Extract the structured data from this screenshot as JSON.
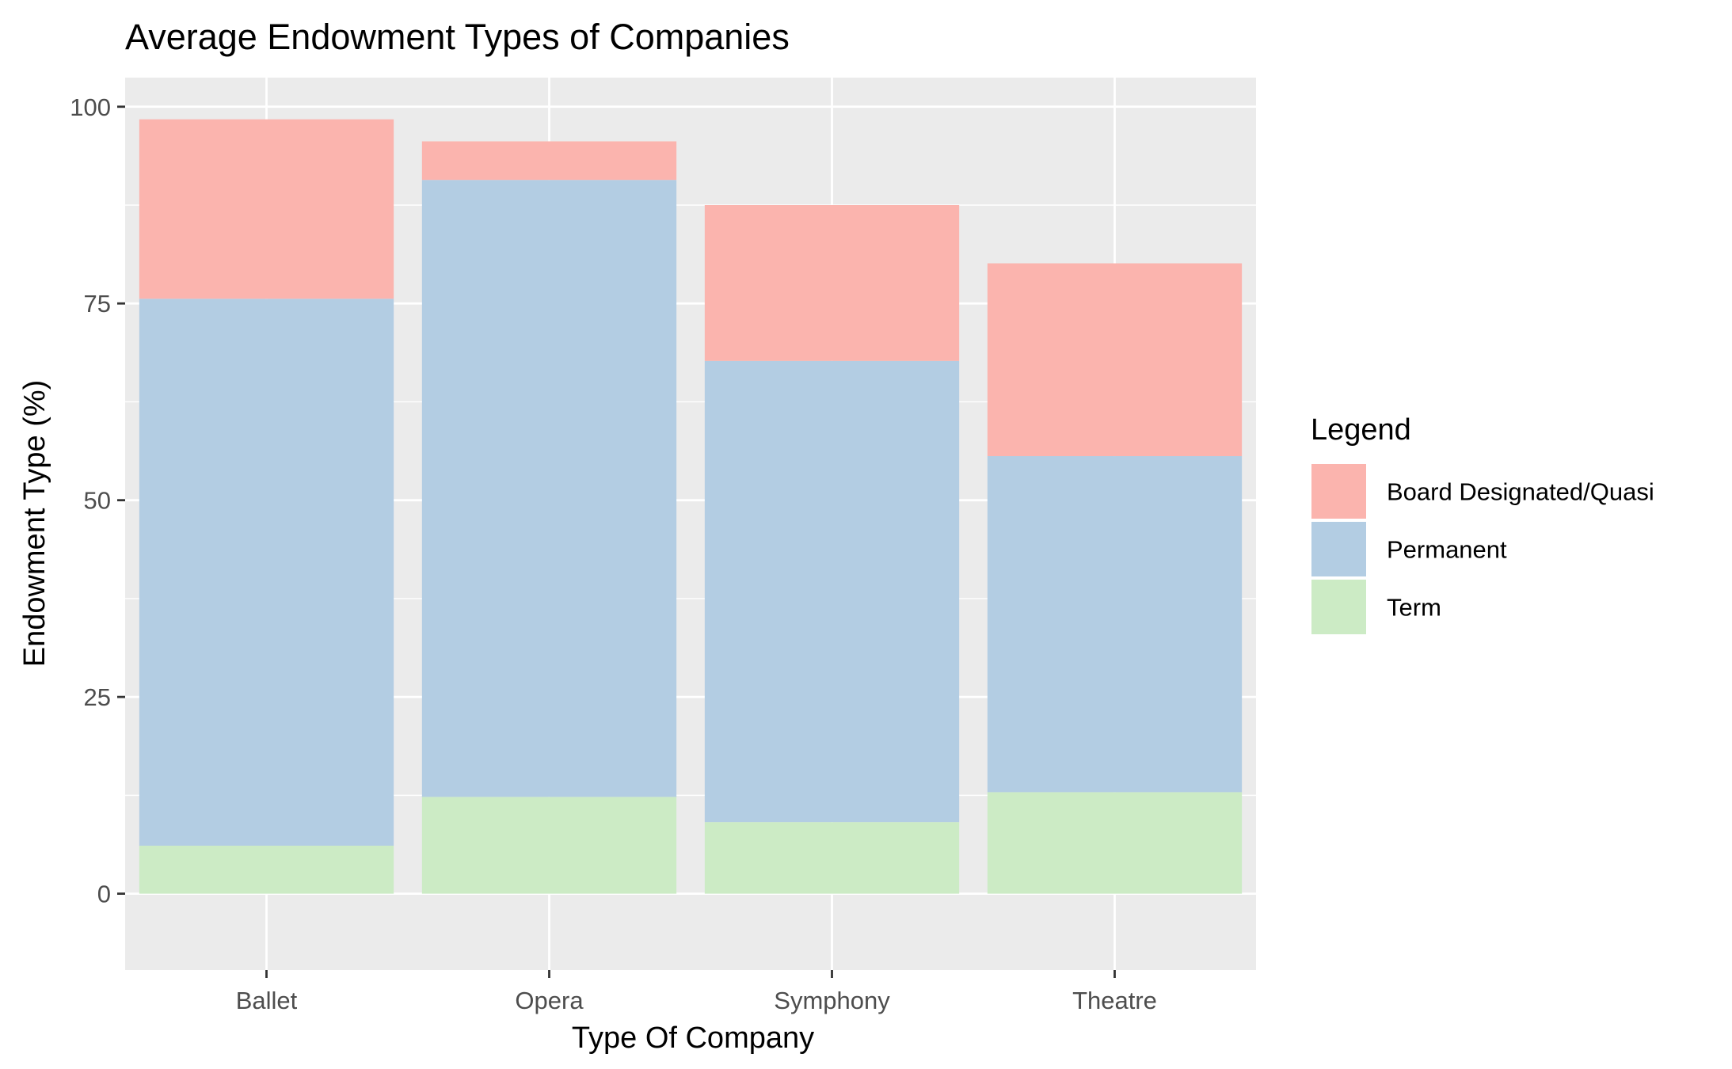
{
  "chart_data": {
    "type": "bar",
    "stacked": true,
    "title": "Average Endowment Types of Companies",
    "xlabel": "Type Of Company",
    "ylabel": "Endowment Type (%)",
    "categories": [
      "Ballet",
      "Opera",
      "Symphony",
      "Theatre"
    ],
    "series": [
      {
        "name": "Term",
        "values": [
          6.1,
          12.3,
          9.1,
          12.9
        ],
        "color": "#ccebc5"
      },
      {
        "name": "Permanent",
        "values": [
          69.5,
          78.4,
          58.6,
          42.7
        ],
        "color": "#b3cde3"
      },
      {
        "name": "Board Designated/Quasi",
        "values": [
          22.8,
          4.9,
          19.8,
          24.5
        ],
        "color": "#fbb4ae"
      }
    ],
    "ylim": [
      -9.7,
      103.7
    ],
    "yticks": [
      0,
      25,
      50,
      75,
      100
    ],
    "ytick_labels": [
      "0",
      "25",
      "50",
      "75",
      "100"
    ],
    "grid": true,
    "legend": {
      "title": "Legend",
      "position": "right",
      "entries": [
        "Board Designated/Quasi",
        "Permanent",
        "Term"
      ]
    },
    "panel_background": "#ebebeb",
    "grid_color": "#ffffff"
  }
}
